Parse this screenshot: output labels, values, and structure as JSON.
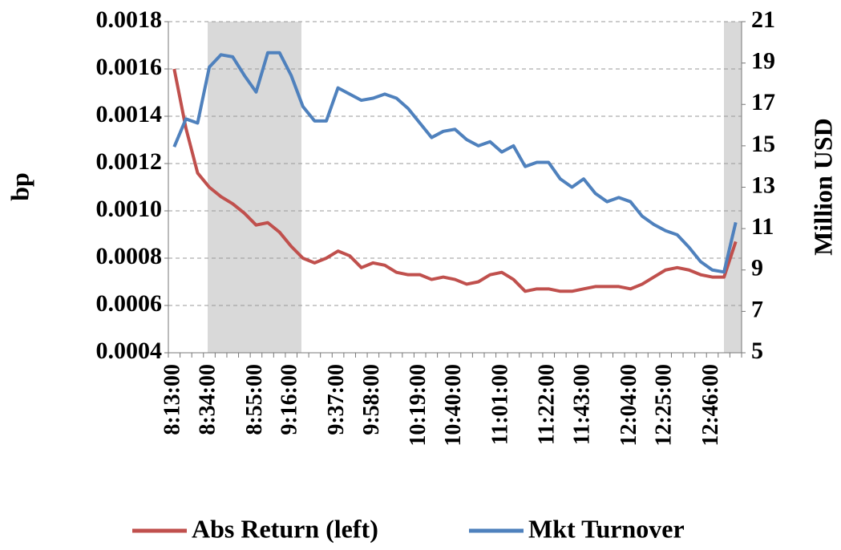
{
  "chart_data": {
    "type": "line",
    "categories": [
      "8:13:00",
      null,
      null,
      "8:34:00",
      null,
      null,
      null,
      "8:55:00",
      null,
      null,
      "9:16:00",
      null,
      null,
      null,
      "9:37:00",
      null,
      null,
      "9:58:00",
      null,
      null,
      null,
      "10:19:00",
      null,
      null,
      "10:40:00",
      null,
      null,
      null,
      "11:01:00",
      null,
      null,
      null,
      "11:22:00",
      null,
      null,
      "11:43:00",
      null,
      null,
      null,
      "12:04:00",
      null,
      null,
      "12:25:00",
      null,
      null,
      null,
      "12:46:00",
      null,
      null
    ],
    "series": [
      {
        "name": "Abs Return (left)",
        "color": "#c0504d",
        "values": [
          0.0016,
          0.00135,
          0.00116,
          0.0011,
          0.00106,
          0.00103,
          0.00099,
          0.00094,
          0.00095,
          0.00091,
          0.00085,
          0.0008,
          0.00078,
          0.0008,
          0.00083,
          0.00081,
          0.00076,
          0.00078,
          0.00077,
          0.00074,
          0.00073,
          0.00073,
          0.00071,
          0.00072,
          0.00071,
          0.00069,
          0.0007,
          0.00073,
          0.00074,
          0.00071,
          0.00066,
          0.00067,
          0.00067,
          0.00066,
          0.00066,
          0.00067,
          0.00068,
          0.00068,
          0.00068,
          0.00067,
          0.00069,
          0.00072,
          0.00075,
          0.00076,
          0.00075,
          0.00073,
          0.00072,
          0.00072,
          0.00087
        ]
      },
      {
        "name": "Mkt Turnover",
        "color": "#4f81bd",
        "axis": "y2",
        "values": [
          14.95,
          16.3,
          16.1,
          18.8,
          19.4,
          19.3,
          18.4,
          17.6,
          19.5,
          19.5,
          18.4,
          16.9,
          16.2,
          16.2,
          17.8,
          17.5,
          17.2,
          17.3,
          17.5,
          17.3,
          16.8,
          16.1,
          15.4,
          15.7,
          15.8,
          15.3,
          15.0,
          15.2,
          14.7,
          15.0,
          14.0,
          14.2,
          14.2,
          13.4,
          13.0,
          13.4,
          12.7,
          12.3,
          12.5,
          12.3,
          11.6,
          11.2,
          10.9,
          10.7,
          10.1,
          9.4,
          9.0,
          8.9,
          11.3
        ]
      }
    ],
    "ylabel": "bp",
    "y2label": "Million USD",
    "ylim": [
      0.0004,
      0.0018
    ],
    "yticks": [
      {
        "value": 0.0004,
        "label": "0.0004"
      },
      {
        "value": 0.0006,
        "label": "0.0006"
      },
      {
        "value": 0.0008,
        "label": "0.0008"
      },
      {
        "value": 0.001,
        "label": "0.0010"
      },
      {
        "value": 0.0012,
        "label": "0.0012"
      },
      {
        "value": 0.0014,
        "label": "0.0014"
      },
      {
        "value": 0.0016,
        "label": "0.0016"
      },
      {
        "value": 0.0018,
        "label": "0.0018"
      }
    ],
    "y2lim": [
      5,
      21
    ],
    "y2ticks": [
      5,
      7,
      9,
      11,
      13,
      15,
      17,
      19,
      21
    ],
    "grid": true,
    "legend": "bottom"
  }
}
